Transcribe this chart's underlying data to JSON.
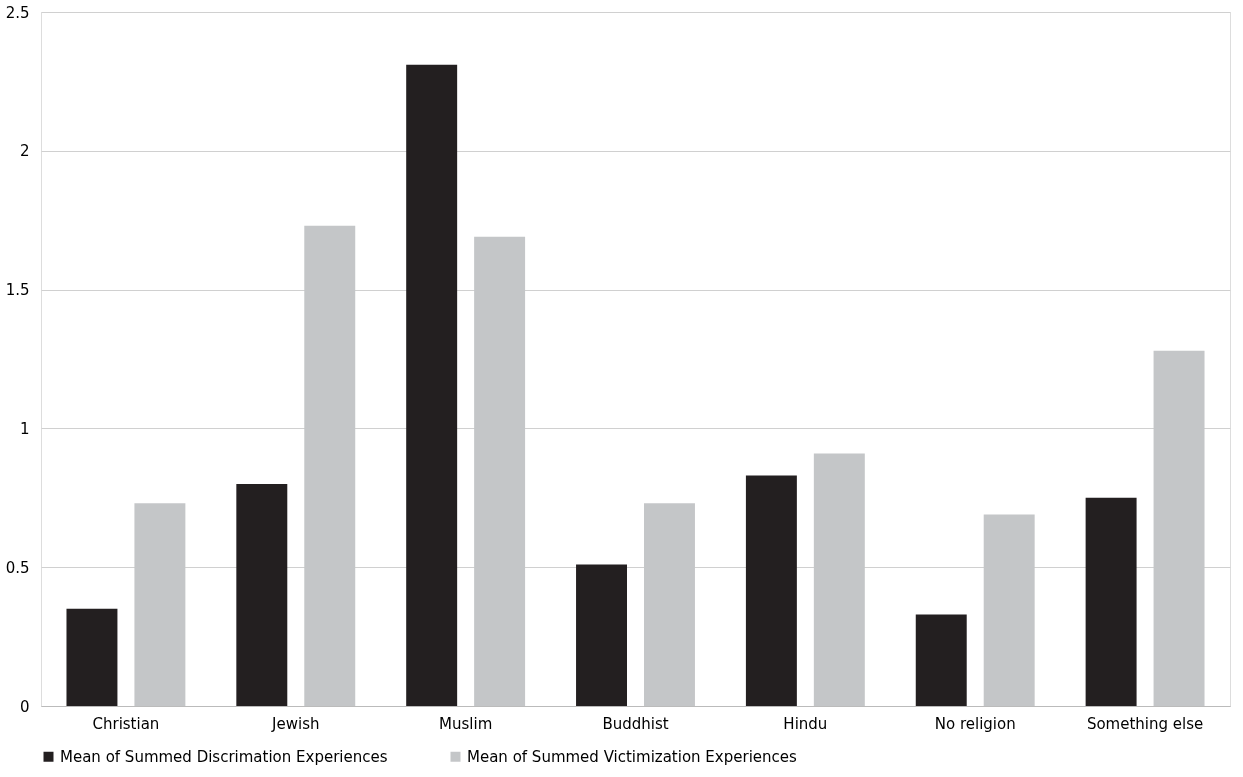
{
  "chart_data": {
    "type": "bar",
    "categories": [
      "Christian",
      "Jewish",
      "Muslim",
      "Buddhist",
      "Hindu",
      "No religion",
      "Something else"
    ],
    "series": [
      {
        "name": "Mean of Summed Discrimation Experiences",
        "color": "#231f20",
        "values": [
          0.35,
          0.8,
          2.31,
          0.51,
          0.83,
          0.33,
          0.75
        ]
      },
      {
        "name": "Mean of Summed Victimization Experiences",
        "color": "#c4c6c8",
        "values": [
          0.73,
          1.73,
          1.69,
          0.73,
          0.91,
          0.69,
          1.28
        ]
      }
    ],
    "ylim": [
      0,
      2.5
    ],
    "yticks": [
      0,
      0.5,
      1,
      1.5,
      2,
      2.5
    ],
    "grid": "y",
    "legend": "bottom"
  }
}
